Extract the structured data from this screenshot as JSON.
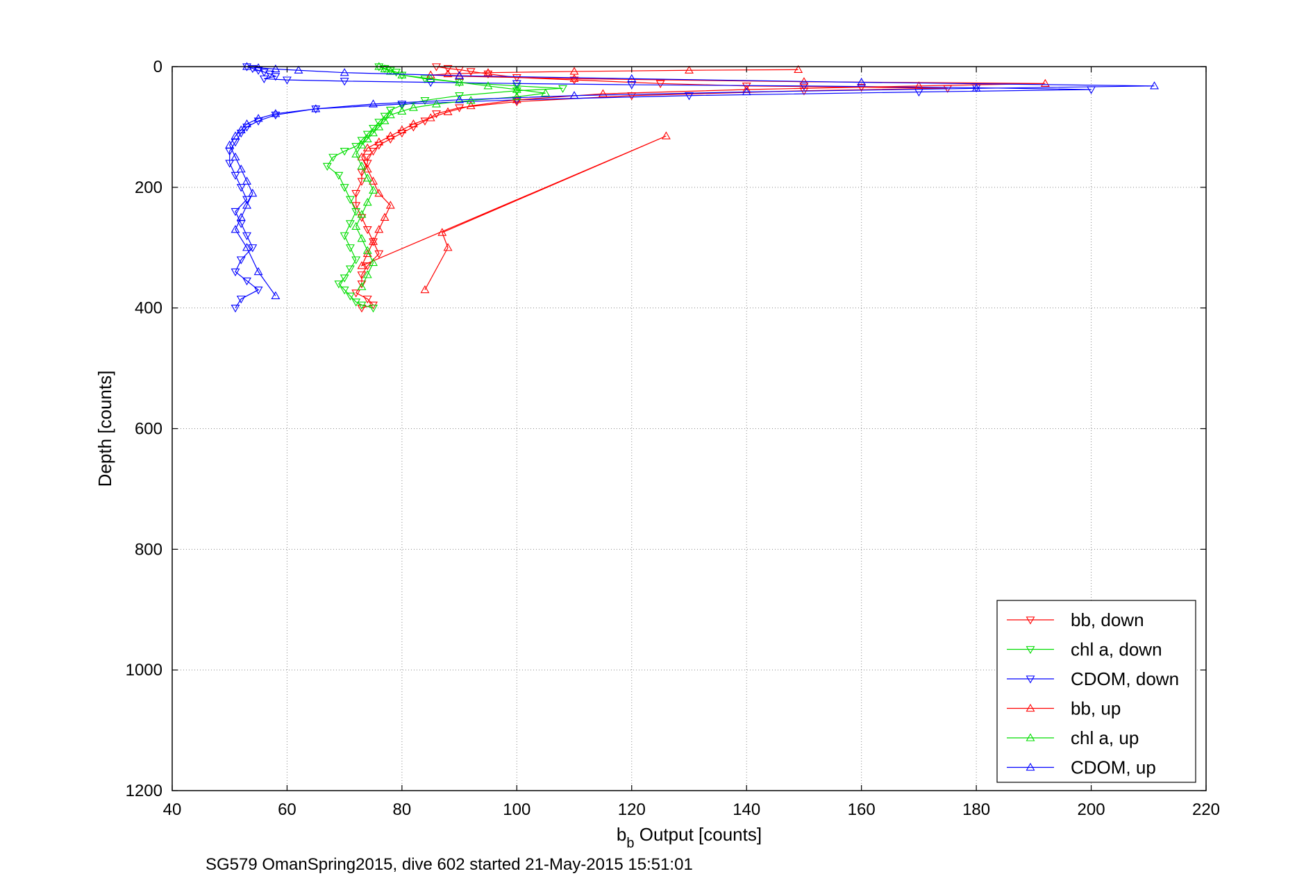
{
  "chart_data": {
    "type": "scatter",
    "title": "",
    "xlabel_main": "b",
    "xlabel_sub": "b",
    "xlabel_rest": " Output [counts]",
    "ylabel": "Depth [counts]",
    "caption": "SG579 OmanSpring2015, dive 602 started 21-May-2015 15:51:01",
    "xlim": [
      40,
      220
    ],
    "ylim": [
      0,
      1200
    ],
    "y_reversed": true,
    "grid": true,
    "grid_style": "dotted",
    "legend_position": "bottom-right",
    "x_ticks": [
      "40",
      "60",
      "80",
      "100",
      "120",
      "140",
      "160",
      "180",
      "200",
      "220"
    ],
    "y_ticks": [
      "0",
      "200",
      "400",
      "600",
      "800",
      "1000",
      "1200"
    ],
    "series": [
      {
        "name": "bb, down",
        "color": "#ff0000",
        "marker": "triangle-down",
        "x": [
          86,
          88,
          90,
          92,
          95,
          100,
          110,
          125,
          140,
          160,
          175,
          150,
          120,
          100,
          90,
          86,
          84,
          82,
          80,
          78,
          76,
          75,
          74,
          74,
          73,
          73,
          72,
          72,
          73,
          74,
          75,
          76,
          74,
          73,
          73,
          72,
          74,
          75,
          73
        ],
        "y": [
          0,
          3,
          5,
          8,
          12,
          18,
          22,
          28,
          32,
          34,
          36,
          40,
          48,
          58,
          68,
          78,
          90,
          100,
          110,
          120,
          130,
          140,
          150,
          160,
          175,
          190,
          210,
          230,
          250,
          270,
          290,
          310,
          330,
          345,
          360,
          375,
          385,
          395,
          400
        ]
      },
      {
        "name": "chl a, down",
        "color": "#00dd00",
        "marker": "triangle-down",
        "x": [
          76,
          77,
          78,
          79,
          80,
          84,
          90,
          100,
          108,
          100,
          90,
          84,
          80,
          78,
          77,
          76,
          75,
          74,
          73,
          72,
          70,
          68,
          67,
          69,
          70,
          71,
          72,
          71,
          70,
          71,
          72,
          71,
          70,
          69,
          70,
          71,
          72,
          73,
          75
        ],
        "y": [
          0,
          3,
          6,
          9,
          14,
          20,
          26,
          32,
          36,
          40,
          48,
          56,
          64,
          72,
          82,
          92,
          102,
          112,
          122,
          132,
          140,
          150,
          165,
          180,
          200,
          220,
          240,
          260,
          280,
          300,
          320,
          335,
          350,
          360,
          370,
          380,
          390,
          395,
          400
        ]
      },
      {
        "name": "CDOM, down",
        "color": "#0000ff",
        "marker": "triangle-down",
        "x": [
          53,
          54,
          55,
          56,
          57,
          58,
          56,
          60,
          70,
          85,
          100,
          120,
          150,
          180,
          200,
          170,
          130,
          100,
          80,
          65,
          58,
          55,
          53,
          52,
          51,
          50,
          50,
          51,
          52,
          53,
          51,
          52,
          53,
          54,
          52,
          51,
          53,
          55,
          52,
          51
        ],
        "y": [
          0,
          3,
          6,
          9,
          12,
          16,
          20,
          22,
          24,
          26,
          28,
          30,
          32,
          35,
          38,
          42,
          48,
          55,
          62,
          70,
          80,
          90,
          100,
          110,
          125,
          140,
          160,
          180,
          200,
          220,
          240,
          260,
          280,
          300,
          320,
          340,
          355,
          370,
          385,
          400
        ]
      },
      {
        "name": "bb, up",
        "color": "#ff0000",
        "marker": "triangle-up",
        "x": [
          149,
          130,
          110,
          95,
          88,
          85,
          90,
          110,
          150,
          192,
          170,
          140,
          115,
          100,
          92,
          88,
          85,
          82,
          80,
          78,
          76,
          74,
          73,
          74,
          75,
          76,
          78,
          77,
          76,
          75,
          74,
          73,
          126,
          87,
          88,
          84
        ],
        "y": [
          5,
          6,
          8,
          10,
          12,
          14,
          16,
          20,
          25,
          28,
          32,
          38,
          45,
          55,
          65,
          75,
          85,
          95,
          105,
          115,
          125,
          135,
          150,
          170,
          190,
          210,
          230,
          250,
          270,
          290,
          310,
          330,
          115,
          275,
          300,
          370
        ]
      },
      {
        "name": "chl a, up",
        "color": "#00dd00",
        "marker": "triangle-up",
        "x": [
          76,
          77,
          78,
          80,
          85,
          90,
          95,
          100,
          105,
          100,
          92,
          86,
          82,
          80,
          78,
          77,
          76,
          75,
          74,
          73,
          72,
          73,
          74,
          75,
          74,
          73,
          72,
          73,
          74,
          75,
          74,
          73
        ],
        "y": [
          0,
          4,
          8,
          14,
          20,
          26,
          32,
          38,
          44,
          50,
          56,
          62,
          68,
          74,
          80,
          90,
          100,
          110,
          120,
          130,
          145,
          165,
          185,
          205,
          225,
          245,
          265,
          285,
          305,
          325,
          345,
          365
        ]
      },
      {
        "name": "CDOM, up",
        "color": "#0000ff",
        "marker": "triangle-up",
        "x": [
          53,
          55,
          58,
          62,
          70,
          90,
          120,
          160,
          211,
          180,
          140,
          110,
          90,
          75,
          65,
          58,
          55,
          53,
          52,
          51,
          50,
          51,
          52,
          53,
          54,
          53,
          52,
          51,
          53,
          55,
          58
        ],
        "y": [
          0,
          2,
          4,
          6,
          10,
          15,
          20,
          26,
          32,
          36,
          42,
          48,
          55,
          62,
          70,
          78,
          86,
          95,
          105,
          115,
          130,
          150,
          170,
          190,
          210,
          230,
          250,
          270,
          300,
          340,
          380
        ]
      }
    ]
  }
}
